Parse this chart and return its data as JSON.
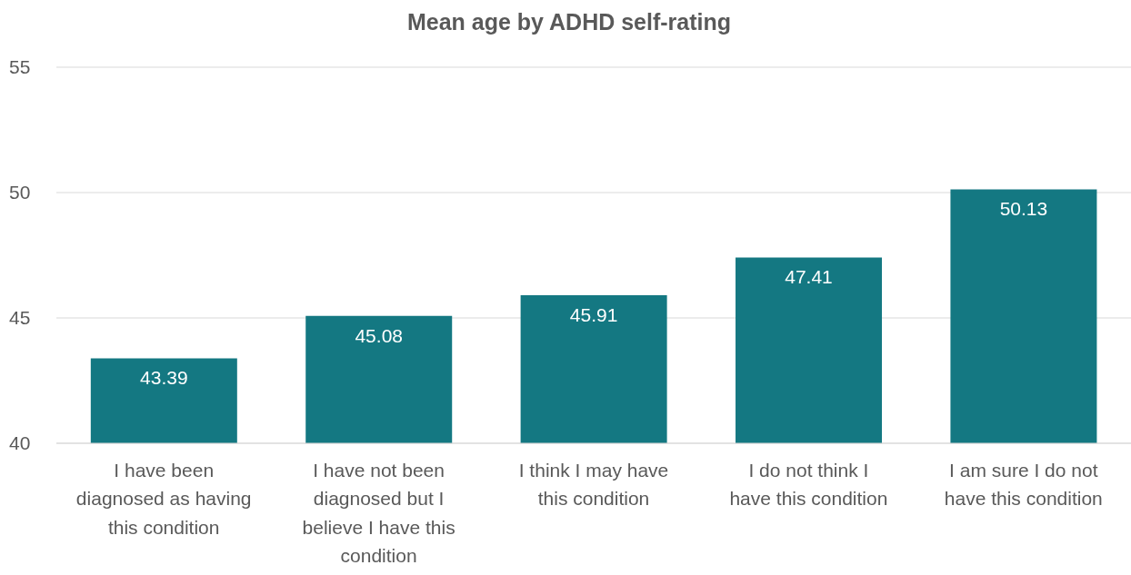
{
  "chart_data": {
    "type": "bar",
    "title": "Mean age by ADHD self-rating",
    "categories": [
      "I have been diagnosed as having this condition",
      "I have not been diagnosed but I believe I have this condition",
      "I think I may have this condition",
      "I do not think I have this condition",
      "I am sure I do not have this condition"
    ],
    "values": [
      43.39,
      45.08,
      45.91,
      47.41,
      50.13
    ],
    "color": "#147882",
    "ylim": [
      40,
      55
    ],
    "yticks": [
      40,
      45,
      50,
      55
    ],
    "grid": "y",
    "data_labels": true,
    "legend": false
  }
}
